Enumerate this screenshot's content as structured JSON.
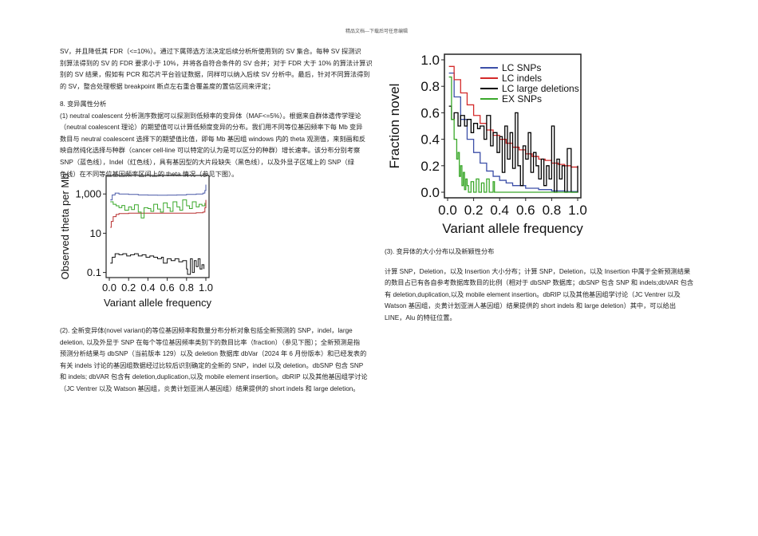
{
  "header": "精品文档---下载后可任意编辑",
  "left": {
    "para1": [
      "SV，并且降低其 FDR（<=10%）。通过下属筛选方法决定后续分析所使用到的 SV 集合。每种 SV 探测识",
      "别算法得到的 SV 的 FDR 要求小于 10%，并将各自符合条件的 SV 合并；对于 FDR 大于 10% 的算法计算识",
      "别的 SV 结果，假如有 PCR 和芯片平台验证数据，同样可以纳入后续 SV 分析中。最后，针对不同算法得到",
      "的 SV，整合处理根据 breakpoint 断点左右重合覆盖度的置信区间来评定；"
    ],
    "section": "8. 变异属性分析",
    "para2": [
      "(1) neutral coalescent 分析测序数据可以探测到低频率的变异体（MAF<=5%）。根据来自群体遗传学理论",
      "（neutral coalescent 理论）的期望值可以计算低频度变异的分布。我们用不同等位基因频率下每 Mb 变异",
      "数目与 neutral coalescent 选择下的期望值比值，即每 Mb 基因组 windows 内的 theta 观测值，来刻画和反",
      "映自然纯化选择与种群（cancer cell-line 可以特定的认为是可以区分的种群）增长速率。该分布分别考察",
      "SNP（蓝色线），Indel（红色线），具有基因型的大片段缺失（黑色线），以及外显子区域上的 SNP（绿",
      "色线）在不同等位基因频率区间上的 theta 情况（参见下图）。"
    ],
    "para3": [
      "(2). 全新变异体(novel variant)的等位基因频率和数量分布分析对象包括全新预测的 SNP，indel，large",
      "deletion, 以及外显于 SNP 在每个等位基因频率类别下的数目比率（fraction）（参见下图）；全新预测是指",
      "预测分析结果与 dbSNP（当前版本 129）以及 deletion 数据库 dbVar（2024 年 6 月份版本）和已经发表的",
      "有关 indels 讨论的基因组数据经过比较后识别确定的全新的 SNP，indel 以及 deletion。dbSNP 包含 SNP",
      "和 indels; dbVAR 包含有 deletion,duplication,以及 mobile element insertion。dbRIP 以及其他基因组学讨论",
      "（JC Ventrer 以及 Watson 基因组，炎黄计划亚洲人基因组）结果提供的 short indels 和 large deletion。"
    ]
  },
  "right": {
    "heading": "(3). 变异体的大小分布以及新颖性分布",
    "para": [
      "计算 SNP，Deletion，以及 Insertion 大小分布；计算 SNP，Deletion，以及 Insertion 中属于全新预测结果",
      "的数目占已有各自参考数据库数目的比例（相对于 dbSNP 数据库；dbSNP 包含 SNP 和 indels;dbVAR 包含",
      "有 deletion,duplication,以及 mobile element insertion。dbRIP 以及其他基因组学讨论（JC Ventrer 以及",
      "Watson 基因组，炎黄计划亚洲人基因组）结果提供的 short indels 和 large deletion）其中，可以给出",
      "LINE，Alu 的特征位置。"
    ]
  },
  "chart_data": [
    {
      "type": "line",
      "title": "",
      "xlabel": "Variant allele frequency",
      "ylabel": "Observed theta per Mb",
      "yscale": "log",
      "xlim": [
        0,
        1
      ],
      "ylim": [
        0.08,
        5000
      ],
      "xticks": [
        "0.0",
        "0.2",
        "0.4",
        "0.6",
        "0.8",
        "1.0"
      ],
      "yticks": [
        "0.1",
        "10",
        "1,000"
      ],
      "ytick_values": [
        0.1,
        10,
        1000
      ],
      "series": [
        {
          "color": "#4a5aa8",
          "x": [
            0.01,
            0.03,
            0.06,
            0.1,
            0.2,
            0.3,
            0.4,
            0.5,
            0.6,
            0.7,
            0.8,
            0.9,
            0.97,
            0.99,
            1.0
          ],
          "values": [
            500,
            900,
            1100,
            1000,
            950,
            900,
            870,
            860,
            870,
            900,
            950,
            1000,
            1100,
            1500,
            3000
          ]
        },
        {
          "color": "#b83030",
          "x": [
            0.01,
            0.02,
            0.04,
            0.07,
            0.1,
            0.2,
            0.3,
            0.4,
            0.5,
            0.6,
            0.7,
            0.8,
            0.9,
            0.97,
            0.99,
            1.0
          ],
          "values": [
            20,
            40,
            70,
            90,
            100,
            105,
            105,
            105,
            105,
            105,
            105,
            105,
            110,
            120,
            200,
            500
          ]
        },
        {
          "color": "#3aa82a",
          "x": [
            0.01,
            0.04,
            0.07,
            0.1,
            0.13,
            0.16,
            0.2,
            0.23,
            0.26,
            0.3,
            0.33,
            0.36,
            0.4,
            0.43,
            0.46,
            0.5,
            0.53,
            0.56,
            0.6,
            0.63,
            0.66,
            0.7,
            0.73,
            0.76,
            0.8,
            0.83,
            0.86,
            0.9,
            0.93,
            0.96,
            0.99
          ],
          "values": [
            400,
            300,
            250,
            200,
            260,
            150,
            220,
            160,
            280,
            120,
            60,
            200,
            180,
            130,
            300,
            170,
            120,
            350,
            200,
            130,
            400,
            220,
            150,
            500,
            250,
            180,
            400,
            220,
            300,
            250,
            350
          ]
        },
        {
          "color": "#111111",
          "x": [
            0.01,
            0.03,
            0.06,
            0.1,
            0.14,
            0.18,
            0.22,
            0.26,
            0.3,
            0.34,
            0.38,
            0.42,
            0.46,
            0.5,
            0.54,
            0.56,
            0.6,
            0.64,
            0.68,
            0.72,
            0.76,
            0.8,
            0.81,
            0.84,
            0.86,
            0.88,
            0.9,
            0.92,
            0.94,
            0.96,
            0.98
          ],
          "values": [
            0.3,
            0.6,
            0.9,
            0.8,
            0.9,
            0.7,
            0.8,
            0.9,
            0.7,
            0.8,
            0.6,
            0.7,
            0.6,
            0.5,
            0.6,
            0.3,
            0.5,
            0.4,
            0.5,
            0.35,
            0.4,
            0.15,
            0.06,
            0.5,
            0.1,
            0.4,
            0.2,
            0.5,
            0.15,
            0.25,
            0.15
          ]
        }
      ]
    },
    {
      "type": "line",
      "title": "",
      "xlabel": "Variant allele frequency",
      "ylabel": "Fraction novel",
      "xlim": [
        0,
        1
      ],
      "ylim": [
        0,
        1
      ],
      "xticks": [
        "0.0",
        "0.2",
        "0.4",
        "0.6",
        "0.8",
        "1.0"
      ],
      "yticks": [
        "0.0",
        "0.2",
        "0.4",
        "0.6",
        "0.8",
        "1.0"
      ],
      "legend": "top-right",
      "series": [
        {
          "name": "LC SNPs",
          "color": "#3c4fa8",
          "x": [
            0.01,
            0.05,
            0.1,
            0.15,
            0.2,
            0.25,
            0.3,
            0.35,
            0.4,
            0.45,
            0.5,
            0.6,
            0.7,
            0.8,
            0.9,
            1.0
          ],
          "values": [
            0.9,
            0.72,
            0.55,
            0.4,
            0.3,
            0.22,
            0.16,
            0.12,
            0.09,
            0.07,
            0.05,
            0.03,
            0.02,
            0.01,
            0.005,
            0
          ]
        },
        {
          "name": "LC indels",
          "color": "#d42a2a",
          "x": [
            0.01,
            0.05,
            0.1,
            0.15,
            0.2,
            0.25,
            0.3,
            0.35,
            0.4,
            0.45,
            0.5,
            0.55,
            0.6,
            0.65,
            0.7,
            0.75,
            0.8,
            0.85,
            0.9,
            0.95,
            1.0
          ],
          "values": [
            0.95,
            0.85,
            0.75,
            0.66,
            0.58,
            0.52,
            0.47,
            0.43,
            0.4,
            0.37,
            0.34,
            0.32,
            0.29,
            0.27,
            0.25,
            0.24,
            0.22,
            0.21,
            0.2,
            0.19,
            0.18
          ]
        },
        {
          "name": "LC large deletions",
          "color": "#000000",
          "x": [
            0.01,
            0.03,
            0.05,
            0.08,
            0.1,
            0.13,
            0.15,
            0.18,
            0.2,
            0.23,
            0.25,
            0.28,
            0.3,
            0.33,
            0.35,
            0.38,
            0.4,
            0.42,
            0.44,
            0.46,
            0.48,
            0.5,
            0.52,
            0.54,
            0.56,
            0.58,
            0.6,
            0.62,
            0.64,
            0.66,
            0.68,
            0.7,
            0.72,
            0.74,
            0.76,
            0.78,
            0.8,
            0.82,
            0.84,
            0.86,
            0.88,
            0.9,
            0.92,
            0.95,
            1.0
          ],
          "values": [
            0.65,
            0.55,
            0.6,
            0.5,
            0.58,
            0.5,
            0.55,
            0.45,
            0.52,
            0.48,
            0.5,
            0.4,
            0.58,
            0.35,
            0.45,
            0.3,
            0.42,
            0.15,
            0.5,
            0.25,
            0.45,
            0.18,
            0.6,
            0.2,
            0.05,
            0.35,
            0.25,
            0.45,
            0.15,
            0.3,
            0.2,
            0.1,
            0.25,
            0.05,
            0.2,
            0.1,
            0.5,
            0.0,
            0.25,
            0.1,
            0.2,
            0.0,
            0.33,
            0.0,
            0.2
          ]
        },
        {
          "name": "EX SNPs",
          "color": "#3aa82a",
          "x": [
            0.01,
            0.03,
            0.05,
            0.07,
            0.08,
            0.09,
            0.1,
            0.11,
            0.12,
            0.13,
            0.14,
            0.15,
            0.16,
            0.18,
            0.2,
            0.22,
            0.24,
            0.26,
            0.28,
            0.3,
            0.32,
            0.35,
            0.36,
            0.4,
            1.0
          ],
          "values": [
            0.87,
            0.55,
            0.4,
            0.25,
            0.3,
            0.12,
            0.2,
            0.05,
            0.15,
            0.02,
            0.1,
            0.05,
            0.0,
            0.08,
            0.0,
            0.1,
            0.0,
            0.07,
            0.0,
            0.1,
            0.0,
            0.08,
            0.0,
            0.0,
            0.0
          ]
        }
      ]
    }
  ]
}
